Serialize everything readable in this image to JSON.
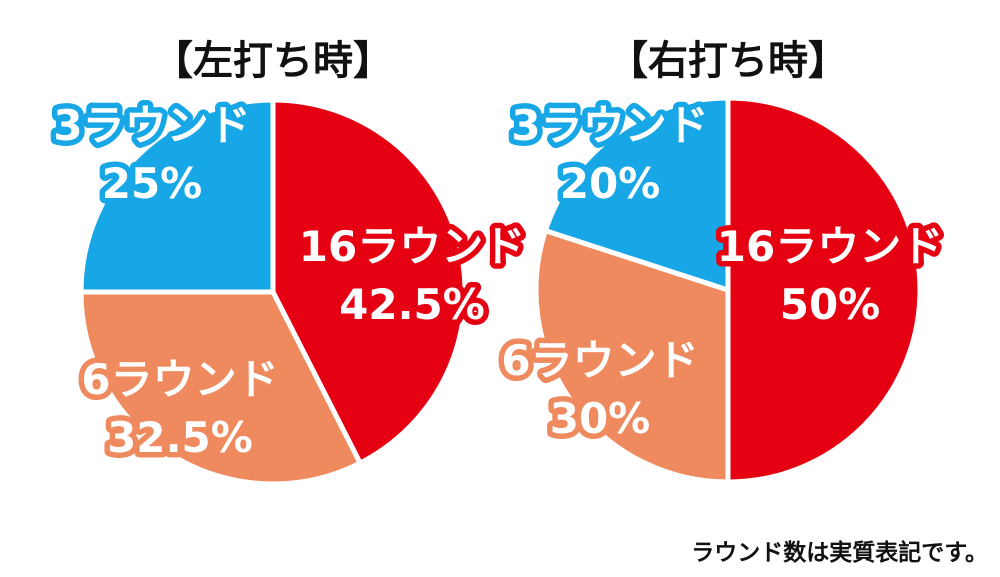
{
  "note": "ラウンド数は実質表記です。",
  "chart_data": [
    {
      "type": "pie",
      "title": "【左打ち時】",
      "slices": [
        {
          "label": "16ラウンド",
          "pct_label": "42.5%",
          "value": 42.5,
          "color": "#e50012"
        },
        {
          "label": "6ラウンド",
          "pct_label": "32.5%",
          "value": 32.5,
          "color": "#ef8a5f"
        },
        {
          "label": "3ラウンド",
          "pct_label": "25%",
          "value": 25,
          "color": "#18a7e6"
        }
      ]
    },
    {
      "type": "pie",
      "title": "【右打ち時】",
      "slices": [
        {
          "label": "16ラウンド",
          "pct_label": "50%",
          "value": 50,
          "color": "#e50012"
        },
        {
          "label": "6ラウンド",
          "pct_label": "30%",
          "value": 30,
          "color": "#ef8a5f"
        },
        {
          "label": "3ラウンド",
          "pct_label": "20%",
          "value": 20,
          "color": "#18a7e6"
        }
      ]
    }
  ]
}
